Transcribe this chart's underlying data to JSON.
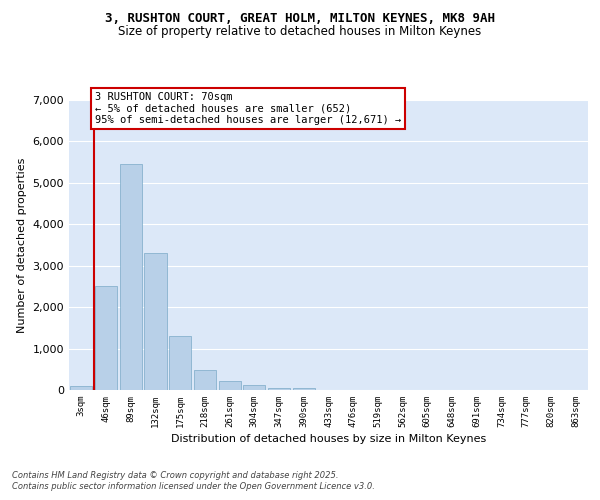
{
  "title_line1": "3, RUSHTON COURT, GREAT HOLM, MILTON KEYNES, MK8 9AH",
  "title_line2": "Size of property relative to detached houses in Milton Keynes",
  "xlabel": "Distribution of detached houses by size in Milton Keynes",
  "ylabel": "Number of detached properties",
  "bar_labels": [
    "3sqm",
    "46sqm",
    "89sqm",
    "132sqm",
    "175sqm",
    "218sqm",
    "261sqm",
    "304sqm",
    "347sqm",
    "390sqm",
    "433sqm",
    "476sqm",
    "519sqm",
    "562sqm",
    "605sqm",
    "648sqm",
    "691sqm",
    "734sqm",
    "777sqm",
    "820sqm",
    "863sqm"
  ],
  "bar_values": [
    100,
    2500,
    5450,
    3300,
    1300,
    480,
    220,
    110,
    55,
    40,
    0,
    0,
    0,
    0,
    0,
    0,
    0,
    0,
    0,
    0,
    0
  ],
  "bar_color": "#b8d0e8",
  "bar_edgecolor": "#7aaac8",
  "vline_color": "#cc0000",
  "annotation_text": "3 RUSHTON COURT: 70sqm\n← 5% of detached houses are smaller (652)\n95% of semi-detached houses are larger (12,671) →",
  "annotation_box_edgecolor": "#cc0000",
  "plot_bg_color": "#dce8f8",
  "grid_color": "#ffffff",
  "footer_line1": "Contains HM Land Registry data © Crown copyright and database right 2025.",
  "footer_line2": "Contains public sector information licensed under the Open Government Licence v3.0.",
  "ylim_max": 7000,
  "yticks": [
    0,
    1000,
    2000,
    3000,
    4000,
    5000,
    6000,
    7000
  ]
}
